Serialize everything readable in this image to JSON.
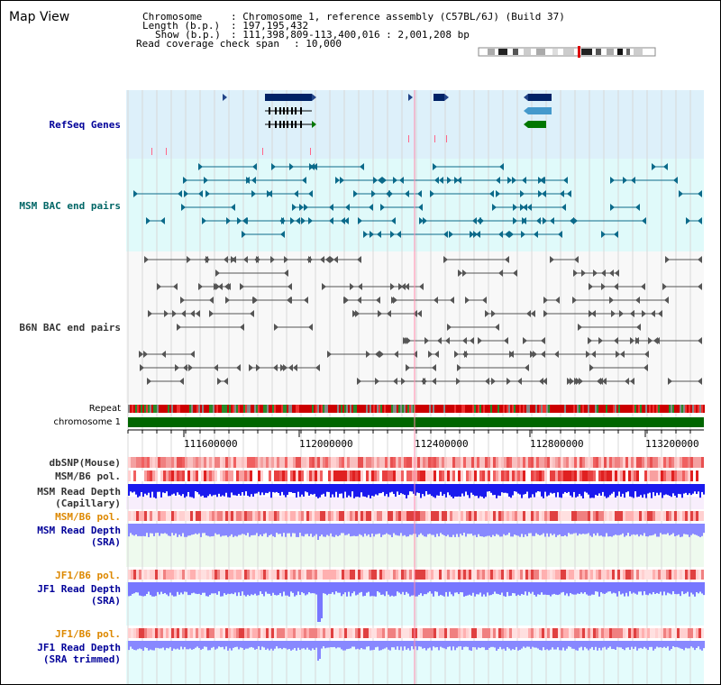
{
  "title": "Map View",
  "header": {
    "chromosome_key": "Chromosome",
    "chromosome_val": ": Chromosome 1, reference assembly (C57BL/6J) (Build 37)",
    "length_key": "Length (b.p.)",
    "length_val": ": 197,195,432",
    "show_key": "Show (b.p.)",
    "show_val": ": 111,398,809-113,400,016 : 2,001,208 bp",
    "coverage_key": "Read coverage check span",
    "coverage_val": ": 10,000"
  },
  "tracks": {
    "refseq": "RefSeq Genes",
    "msm_bac": "MSM BAC end pairs",
    "b6n_bac": "B6N BAC end pairs",
    "repeat": "Repeat",
    "chromosome": "chromosome 1",
    "dbsnp": "dbSNP(Mouse)",
    "msm_b6_pol_1": "MSM/B6 pol.",
    "msm_read_depth_cap_1": "MSM Read Depth",
    "msm_read_depth_cap_2": "(Capillary)",
    "msm_b6_pol_2": "MSM/B6 pol.",
    "msm_read_depth_sra_1": "MSM Read Depth",
    "msm_read_depth_sra_2": "(SRA)",
    "jf1_b6_pol_1": "JF1/B6 pol.",
    "jf1_read_depth_sra_1": "JF1 Read Depth",
    "jf1_read_depth_sra_2": "(SRA)",
    "jf1_b6_pol_2": "JF1/B6 pol.",
    "jf1_read_depth_trim_1": "JF1 Read Depth",
    "jf1_read_depth_trim_2": "(SRA trimmed)"
  },
  "axis": {
    "ticks": [
      "111600000",
      "112000000",
      "112400000",
      "112800000",
      "113200000"
    ]
  },
  "colors": {
    "refseq_bg": "#ddf0fa",
    "msm_bac_bg": "#e0fafa",
    "b6n_bac_bg": "#f8f8f8",
    "chromosome": "#006600",
    "gene_dark": "#002266",
    "gene_light": "#4499cc",
    "gene_green": "#007700",
    "depth_blue": "#1a1aee",
    "depth_light": "#8888ff"
  }
}
